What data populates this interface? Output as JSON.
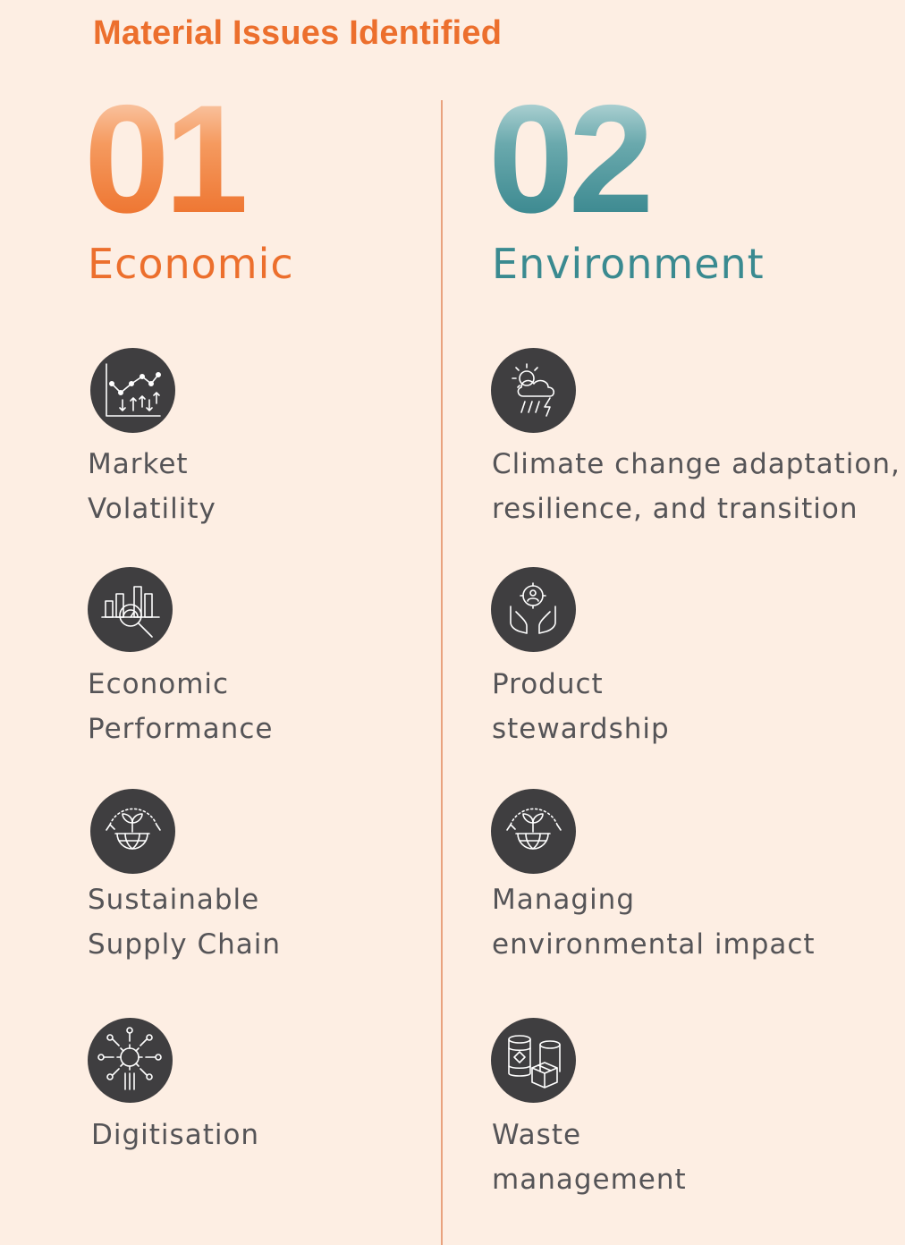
{
  "title": "Material Issues Identified",
  "columns": [
    {
      "number": "01",
      "category": "Economic",
      "accent_color": "#ec6f2d",
      "items": [
        {
          "icon": "market-chart-icon",
          "lines": [
            "Market",
            "Volatility"
          ]
        },
        {
          "icon": "performance-analysis-icon",
          "lines": [
            "Economic",
            "Performance"
          ]
        },
        {
          "icon": "sustainable-globe-icon",
          "lines": [
            "Sustainable",
            "Supply Chain"
          ]
        },
        {
          "icon": "digital-gear-icon",
          "lines": [
            "Digitisation"
          ]
        }
      ]
    },
    {
      "number": "02",
      "category": "Environment",
      "accent_color": "#3a8a90",
      "items": [
        {
          "icon": "climate-storm-icon",
          "lines": [
            "Climate change adaptation,",
            "resilience, and transition"
          ]
        },
        {
          "icon": "hands-gear-icon",
          "lines": [
            "Product",
            "stewardship"
          ]
        },
        {
          "icon": "sustainable-globe-icon",
          "lines": [
            "Managing",
            "environmental impact"
          ]
        },
        {
          "icon": "waste-barrels-icon",
          "lines": [
            "Waste",
            "management"
          ]
        }
      ]
    }
  ]
}
